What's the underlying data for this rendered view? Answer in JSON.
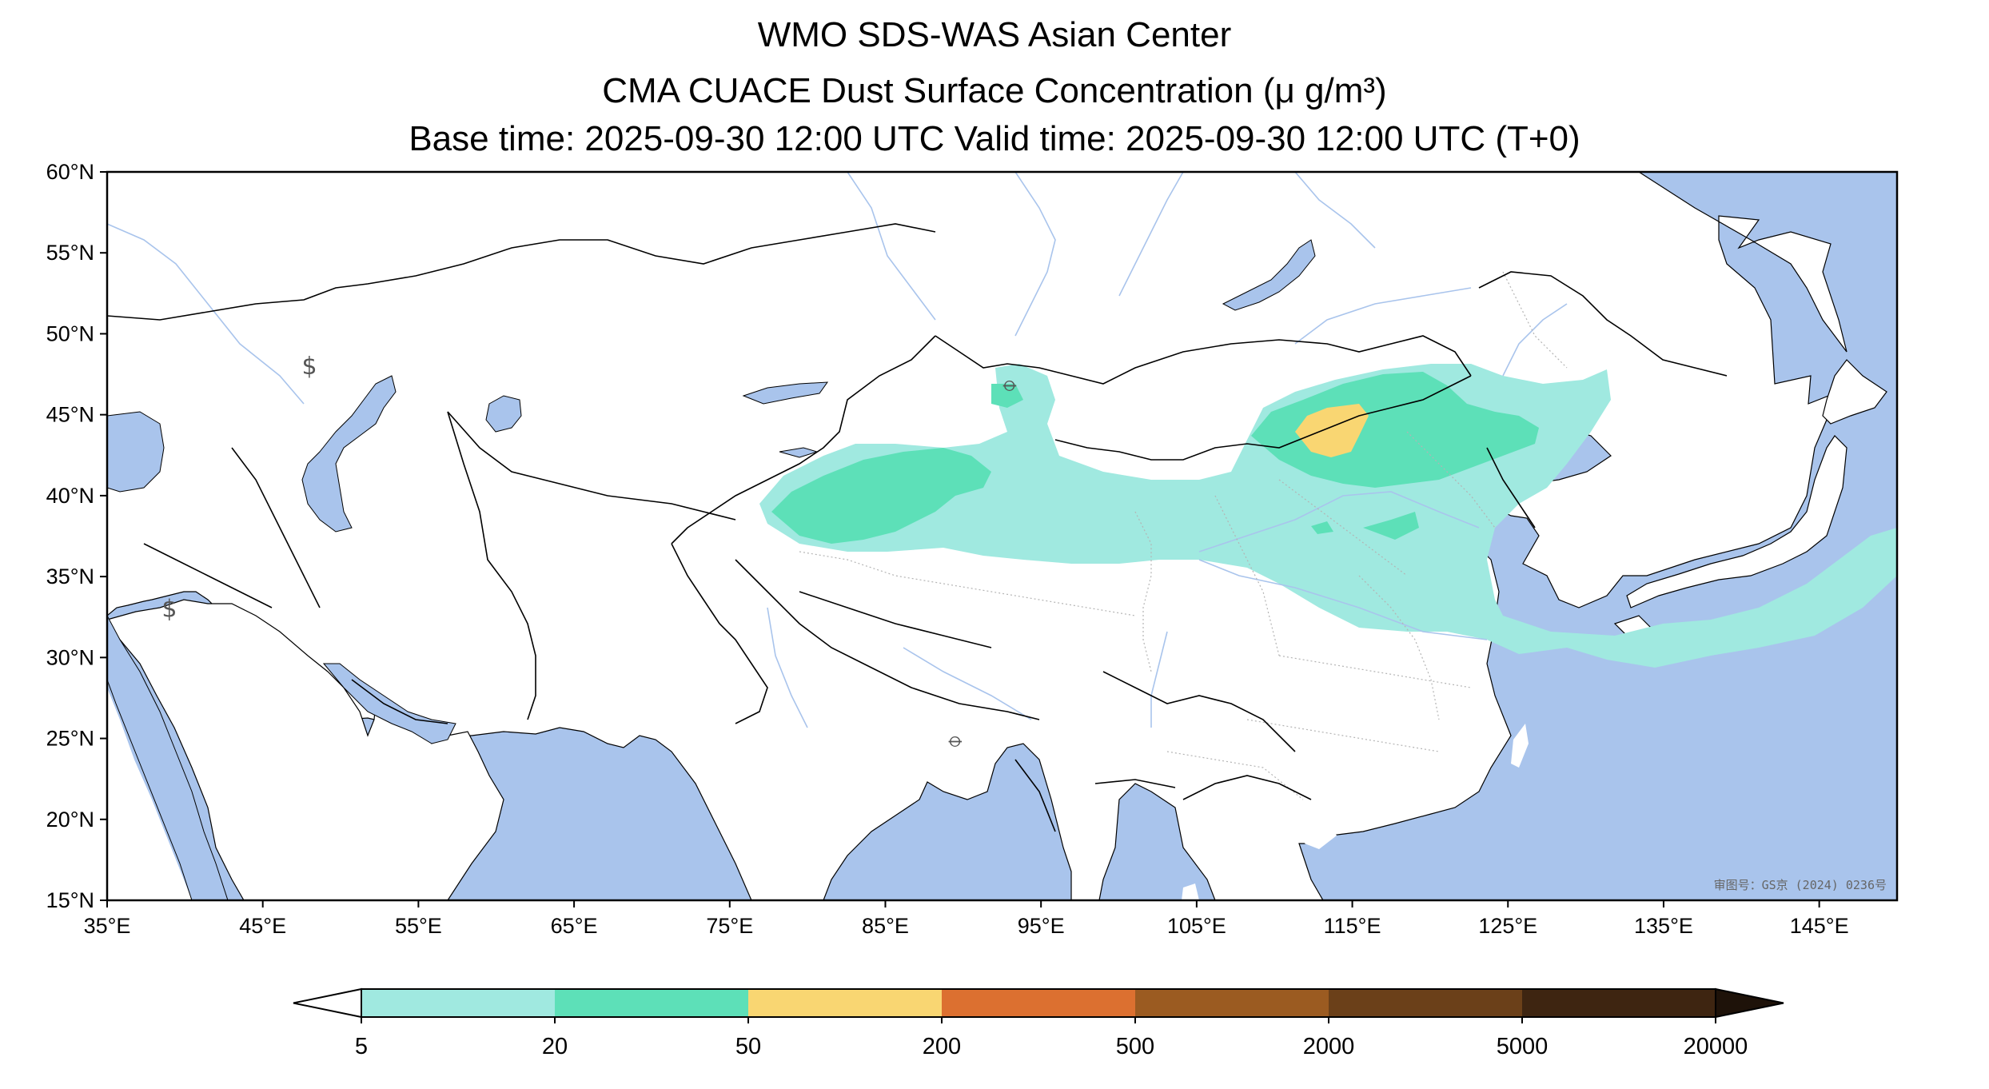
{
  "title": {
    "line1": "WMO SDS-WAS Asian Center",
    "line2": "CMA CUACE Dust Surface Concentration (μ g/m³)",
    "line3": "Base time: 2025-09-30 12:00 UTC Valid time: 2025-09-30 12:00 UTC (T+0)"
  },
  "map": {
    "lon_range": [
      35,
      150
    ],
    "lat_range": [
      15,
      60
    ],
    "lon_ticks": [
      {
        "value": 35,
        "label": "35°E"
      },
      {
        "value": 45,
        "label": "45°E"
      },
      {
        "value": 55,
        "label": "55°E"
      },
      {
        "value": 65,
        "label": "65°E"
      },
      {
        "value": 75,
        "label": "75°E"
      },
      {
        "value": 85,
        "label": "85°E"
      },
      {
        "value": 95,
        "label": "95°E"
      },
      {
        "value": 105,
        "label": "105°E"
      },
      {
        "value": 115,
        "label": "115°E"
      },
      {
        "value": 125,
        "label": "125°E"
      },
      {
        "value": 135,
        "label": "135°E"
      },
      {
        "value": 145,
        "label": "145°E"
      }
    ],
    "lat_ticks": [
      {
        "value": 60,
        "label": "60°N"
      },
      {
        "value": 55,
        "label": "55°N"
      },
      {
        "value": 50,
        "label": "50°N"
      },
      {
        "value": 45,
        "label": "45°N"
      },
      {
        "value": 40,
        "label": "40°N"
      },
      {
        "value": 35,
        "label": "35°N"
      },
      {
        "value": 30,
        "label": "30°N"
      },
      {
        "value": 25,
        "label": "25°N"
      },
      {
        "value": 20,
        "label": "20°N"
      },
      {
        "value": 15,
        "label": "15°N"
      }
    ],
    "credit": "审图号：GS京 (2024) 0236号",
    "colors": {
      "water": "#a9c4ec",
      "land": "#ffffff",
      "river": "#a9c4ec",
      "border": "#000000",
      "province": "#b4b4b4",
      "level_5_20": "#a0e9e0",
      "level_20_50": "#5de0b8",
      "level_50_200": "#f9d672"
    },
    "weather_symbols": [
      {
        "lon": 48.0,
        "lat": 47.5,
        "symbol": "$"
      },
      {
        "lon": 39.0,
        "lat": 32.5,
        "symbol": "$"
      },
      {
        "lon": 89.5,
        "lat": 24.5,
        "symbol": "⦵"
      },
      {
        "lon": 93.0,
        "lat": 46.5,
        "symbol": "⦵"
      }
    ]
  },
  "colorbar": {
    "levels": [
      "5",
      "20",
      "50",
      "200",
      "500",
      "2000",
      "5000",
      "20000"
    ],
    "colors": [
      "#a0e9e0",
      "#5de0b8",
      "#f9d672",
      "#dc7030",
      "#9b5b21",
      "#6b4019",
      "#3e2511"
    ],
    "under_color": "#ffffff",
    "over_color": "#1e1209",
    "extend": "both"
  }
}
